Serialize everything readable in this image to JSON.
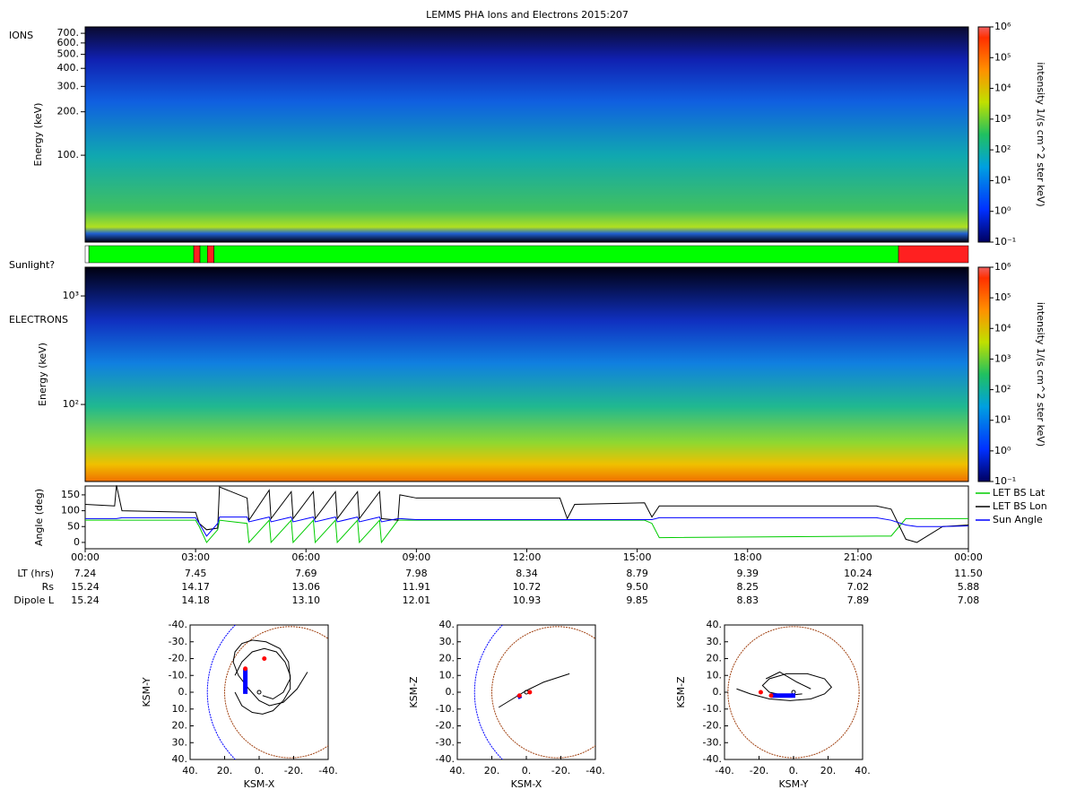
{
  "title": "LEMMS PHA Ions and Electrons  2015:207",
  "chart_data": [
    {
      "type": "spectrogram",
      "label": "IONS",
      "ylabel": "Energy (keV)",
      "ylog": true,
      "ylim": [
        25,
        775
      ],
      "yticks": [
        {
          "value": 100,
          "label": "100."
        },
        {
          "value": 200,
          "label": "200."
        },
        {
          "value": 300,
          "label": "300."
        },
        {
          "value": 400,
          "label": "400."
        },
        {
          "value": 500,
          "label": "500."
        },
        {
          "value": 600,
          "label": "600."
        },
        {
          "value": 700,
          "label": "700."
        }
      ],
      "colorbar": {
        "label": "intensity 1/(s cm^2 ster keV)",
        "log": true,
        "lim": [
          0.1,
          1000000
        ],
        "ticks": [
          {
            "value": 0.1,
            "label": "10⁻¹"
          },
          {
            "value": 1,
            "label": "10⁰"
          },
          {
            "value": 10,
            "label": "10¹"
          },
          {
            "value": 100,
            "label": "10²"
          },
          {
            "value": 1000,
            "label": "10³"
          },
          {
            "value": 10000,
            "label": "10⁴"
          },
          {
            "value": 100000,
            "label": "10⁵"
          },
          {
            "value": 1000000,
            "label": "10⁶"
          }
        ]
      }
    },
    {
      "type": "timeline",
      "label": "Sunlight?",
      "xlim": [
        0,
        24
      ],
      "segments": [
        {
          "start": 0,
          "end": 0.1,
          "color": "#ffffff"
        },
        {
          "start": 0.1,
          "end": 2.95,
          "color": "#00ff00"
        },
        {
          "start": 2.95,
          "end": 3.12,
          "color": "#ff2020"
        },
        {
          "start": 3.12,
          "end": 3.32,
          "color": "#00ff00"
        },
        {
          "start": 3.32,
          "end": 3.5,
          "color": "#ff2020"
        },
        {
          "start": 3.5,
          "end": 22.1,
          "color": "#00ff00"
        },
        {
          "start": 22.1,
          "end": 24,
          "color": "#ff2020"
        }
      ]
    },
    {
      "type": "spectrogram",
      "label": "ELECTRONS",
      "ylabel": "Energy (keV)",
      "ylog": true,
      "ylim": [
        19.5,
        1840
      ],
      "yticks": [
        {
          "value": 100,
          "label": "10²"
        },
        {
          "value": 1000,
          "label": "10³"
        }
      ],
      "colorbar": {
        "label": "intensity 1/(s cm^2 ster keV)",
        "log": true,
        "lim": [
          0.1,
          1000000
        ],
        "ticks": [
          {
            "value": 0.1,
            "label": "10⁻¹"
          },
          {
            "value": 1,
            "label": "10⁰"
          },
          {
            "value": 10,
            "label": "10¹"
          },
          {
            "value": 100,
            "label": "10²"
          },
          {
            "value": 1000,
            "label": "10³"
          },
          {
            "value": 10000,
            "label": "10⁴"
          },
          {
            "value": 100000,
            "label": "10⁵"
          },
          {
            "value": 1000000,
            "label": "10⁶"
          }
        ]
      }
    },
    {
      "type": "line",
      "ylabel": "Angle (deg)",
      "xlim": [
        0,
        24
      ],
      "ylim": [
        -20,
        178
      ],
      "yticks": [
        0,
        50,
        100,
        150
      ],
      "xticks": [
        {
          "value": 0,
          "label": "00:00"
        },
        {
          "value": 3,
          "label": "03:00"
        },
        {
          "value": 6,
          "label": "06:00"
        },
        {
          "value": 9,
          "label": "09:00"
        },
        {
          "value": 12,
          "label": "12:00"
        },
        {
          "value": 15,
          "label": "15:00"
        },
        {
          "value": 18,
          "label": "18:00"
        },
        {
          "value": 21,
          "label": "21:00"
        },
        {
          "value": 24,
          "label": "00:00"
        }
      ],
      "x": [
        0,
        0.8,
        0.85,
        1,
        3,
        3.1,
        3.3,
        3.6,
        3.65,
        4.4,
        4.45,
        5.0,
        5.05,
        5.6,
        5.65,
        6.2,
        6.25,
        6.8,
        6.85,
        7.4,
        7.45,
        8.0,
        8.05,
        8.5,
        8.55,
        9,
        12.9,
        13.1,
        13.3,
        15.2,
        15.4,
        15.6,
        21.5,
        21.9,
        22.3,
        22.6,
        23.3,
        24
      ],
      "series": [
        {
          "name": "LET BS Lat",
          "color": "#00cc00",
          "values": [
            70,
            70,
            70,
            70,
            70,
            50,
            0,
            40,
            70,
            60,
            0,
            70,
            0,
            70,
            0,
            70,
            0,
            70,
            0,
            70,
            0,
            70,
            0,
            70,
            70,
            70,
            70,
            70,
            70,
            70,
            60,
            15,
            20,
            20,
            75,
            75,
            75,
            75
          ]
        },
        {
          "name": "LET BS Lon",
          "color": "#000000",
          "values": [
            120,
            115,
            180,
            100,
            95,
            60,
            40,
            45,
            175,
            140,
            70,
            165,
            75,
            160,
            75,
            160,
            75,
            160,
            75,
            160,
            75,
            160,
            75,
            70,
            150,
            140,
            140,
            75,
            120,
            125,
            80,
            115,
            115,
            105,
            10,
            0,
            50,
            55
          ]
        },
        {
          "name": "Sun Angle",
          "color": "#0000ff",
          "values": [
            75,
            75,
            75,
            78,
            78,
            60,
            20,
            60,
            80,
            80,
            65,
            80,
            65,
            80,
            65,
            80,
            65,
            80,
            65,
            80,
            65,
            80,
            65,
            75,
            75,
            72,
            72,
            72,
            72,
            72,
            72,
            78,
            78,
            70,
            55,
            50,
            50,
            52
          ]
        }
      ]
    },
    {
      "type": "orbit",
      "xlabel": "KSM-X",
      "ylabel": "KSM-Y",
      "xlim": [
        40,
        -40
      ],
      "ylim": [
        40,
        -40
      ],
      "xticks": [
        {
          "value": 40,
          "label": "40."
        },
        {
          "value": 20,
          "label": "20."
        },
        {
          "value": 0,
          "label": "0."
        },
        {
          "value": -20,
          "label": "-20."
        },
        {
          "value": -40,
          "label": "-40."
        }
      ],
      "yticks": [
        {
          "value": -40,
          "label": "-40."
        },
        {
          "value": -30,
          "label": "-30."
        },
        {
          "value": -20,
          "label": "-20."
        },
        {
          "value": -10,
          "label": "-10."
        },
        {
          "value": 0,
          "label": "0."
        },
        {
          "value": 10,
          "label": "10."
        },
        {
          "value": 20,
          "label": "20."
        },
        {
          "value": 30,
          "label": "30."
        },
        {
          "value": 40,
          "label": "40."
        }
      ],
      "series": [
        {
          "color": "#000000",
          "x": [
            -28,
            -22,
            -14,
            -6,
            0,
            6,
            12,
            15,
            14,
            10,
            4,
            -4,
            -12,
            -17,
            -18,
            -14,
            -8,
            -2
          ],
          "values": [
            -12,
            -2,
            6,
            8,
            5,
            -2,
            -10,
            -18,
            -24,
            -29,
            -31,
            -30,
            -26,
            -18,
            -8,
            0,
            4,
            2
          ]
        },
        {
          "color": "#000000",
          "x": [
            14,
            10,
            4,
            -2,
            -8,
            -14,
            -18,
            -18,
            -15,
            -10,
            -3,
            4,
            10,
            14
          ],
          "values": [
            0,
            8,
            12,
            13,
            11,
            5,
            -2,
            -10,
            -18,
            -24,
            -26,
            -24,
            -18,
            -10
          ]
        },
        {
          "color": "#0000ff",
          "x": [
            8,
            8,
            8
          ],
          "values": [
            -14,
            -6,
            1
          ]
        },
        {
          "color": "#ff0000",
          "x": [
            -3,
            8
          ],
          "values": [
            -20,
            -14
          ]
        }
      ]
    },
    {
      "type": "orbit",
      "xlabel": "KSM-X",
      "ylabel": "KSM-Z",
      "xlim": [
        40,
        -40
      ],
      "ylim": [
        -40,
        40
      ],
      "xticks": [
        {
          "value": 40,
          "label": "40."
        },
        {
          "value": 20,
          "label": "20."
        },
        {
          "value": 0,
          "label": "0."
        },
        {
          "value": -20,
          "label": "-20."
        },
        {
          "value": -40,
          "label": "-40."
        }
      ],
      "yticks": [
        {
          "value": -40,
          "label": "-40."
        },
        {
          "value": -30,
          "label": "-30."
        },
        {
          "value": -20,
          "label": "-20."
        },
        {
          "value": -10,
          "label": "-10."
        },
        {
          "value": 0,
          "label": "0."
        },
        {
          "value": 10,
          "label": "10."
        },
        {
          "value": 20,
          "label": "20."
        },
        {
          "value": 30,
          "label": "30."
        },
        {
          "value": 40,
          "label": "40."
        }
      ],
      "series": [
        {
          "color": "#000000",
          "x": [
            16,
            8,
            0,
            -10,
            -25
          ],
          "values": [
            -9,
            -4,
            1,
            6,
            11
          ]
        },
        {
          "color": "#0000ff",
          "x": [
            5,
            3
          ],
          "values": [
            -3,
            -2
          ]
        },
        {
          "color": "#ff0000",
          "x": [
            -2,
            4
          ],
          "values": [
            0,
            -2
          ]
        }
      ]
    },
    {
      "type": "orbit",
      "xlabel": "KSM-Y",
      "ylabel": "KSM-Z",
      "xlim": [
        -40,
        40
      ],
      "ylim": [
        -40,
        40
      ],
      "xticks": [
        {
          "value": -40,
          "label": "-40."
        },
        {
          "value": -20,
          "label": "-20."
        },
        {
          "value": 0,
          "label": "0."
        },
        {
          "value": 20,
          "label": "20."
        },
        {
          "value": 40,
          "label": "40."
        }
      ],
      "yticks": [
        {
          "value": -40,
          "label": "-40."
        },
        {
          "value": -30,
          "label": "-30."
        },
        {
          "value": -20,
          "label": "-20."
        },
        {
          "value": -10,
          "label": "-10."
        },
        {
          "value": 0,
          "label": "0."
        },
        {
          "value": 10,
          "label": "10."
        },
        {
          "value": 20,
          "label": "20."
        },
        {
          "value": 30,
          "label": "30."
        },
        {
          "value": 40,
          "label": "40."
        }
      ],
      "series": [
        {
          "color": "#000000",
          "x": [
            -33,
            -25,
            -14,
            -2,
            10,
            18,
            22,
            18,
            8,
            -4,
            -14,
            -18,
            -14,
            -5,
            5
          ],
          "values": [
            2,
            -1,
            -4,
            -5,
            -4,
            -1,
            3,
            8,
            11,
            11,
            8,
            4,
            0,
            -2,
            -1
          ],
          "closed": false
        },
        {
          "color": "#000000",
          "x": [
            -16,
            -8,
            2,
            10
          ],
          "values": [
            8,
            12,
            6,
            2
          ]
        },
        {
          "color": "#0000ff",
          "x": [
            -13,
            -6,
            1
          ],
          "values": [
            -2,
            -2,
            -2
          ]
        },
        {
          "color": "#ff0000",
          "x": [
            -19,
            -13
          ],
          "values": [
            0,
            -2
          ]
        }
      ]
    }
  ],
  "ephemeris": {
    "rows": [
      {
        "label": "LT (hrs)",
        "values": [
          "7.24",
          "7.45",
          "7.69",
          "7.98",
          "8.34",
          "8.79",
          "9.39",
          "10.24",
          "11.50"
        ]
      },
      {
        "label": "Rs",
        "values": [
          "15.24",
          "14.17",
          "13.06",
          "11.91",
          "10.72",
          "9.50",
          "8.25",
          "7.02",
          "5.88"
        ]
      },
      {
        "label": "Dipole L",
        "values": [
          "15.24",
          "14.18",
          "13.10",
          "12.01",
          "10.93",
          "9.85",
          "8.83",
          "7.89",
          "7.08"
        ]
      }
    ]
  }
}
